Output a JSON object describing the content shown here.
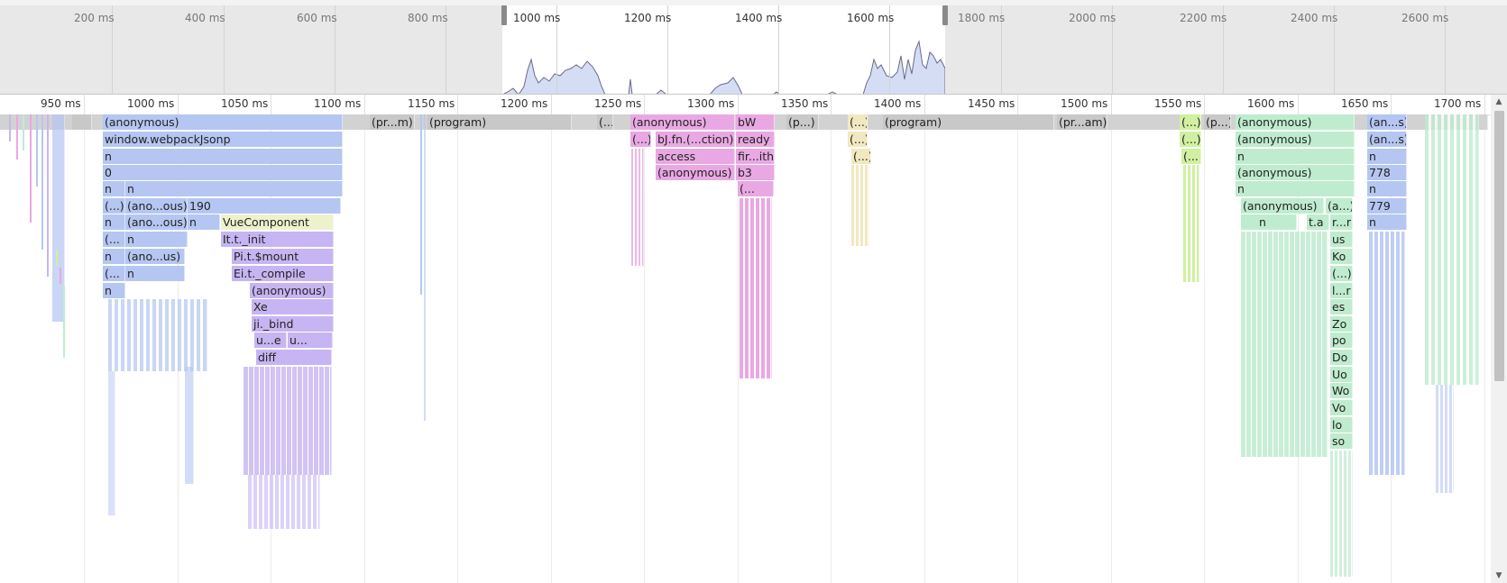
{
  "overview": {
    "ticks": [
      "200 ms",
      "400 ms",
      "600 ms",
      "800 ms",
      "1000 ms",
      "1200 ms",
      "1400 ms",
      "1600 ms",
      "1800 ms",
      "2000 ms",
      "2200 ms",
      "2400 ms",
      "2600 ms"
    ]
  },
  "ruler": {
    "ticks": [
      "950 ms",
      "1000 ms",
      "1050 ms",
      "1100 ms",
      "1150 ms",
      "1200 ms",
      "1250 ms",
      "1300 ms",
      "1350 ms",
      "1400 ms",
      "1450 ms",
      "1500 ms",
      "1550 ms",
      "1600 ms",
      "1650 ms",
      "1700 ms"
    ]
  },
  "colors": {
    "program": "#c8c8c8",
    "blue": "#b5c6f2",
    "purple": "#c6b5f2",
    "pink": "#e9a8e3",
    "green": "#bfeccf",
    "yellow": "#f2e8c0",
    "lime": "#d0f0a0"
  },
  "flame": {
    "labels": {
      "b0": "(anonymous)",
      "b1": "window.webpackJsonp",
      "b2": "n",
      "b3": "0",
      "b4a": "n",
      "b4b": "n",
      "b5a": "(...)",
      "b5b": "(ano...ous)",
      "b5c": "190",
      "b6a": "n",
      "b6b": "(ano...ous)",
      "b6c": "n",
      "b6d": "VueComponent",
      "b7a": "(...",
      "b7b": "n",
      "b7c": "It.t._init",
      "b8a": "n",
      "b8b": "(ano...us)",
      "b8c": "Pi.t.$mount",
      "b9a": "(...",
      "b9b": "n",
      "b9c": "Ei.t._compile",
      "b10a": "n",
      "b10b": "(anonymous)",
      "b11": "Xe",
      "b12": "ji._bind",
      "b13a": "u...e",
      "b13b": "u...",
      "b14": "diff",
      "p1": "(pr...m)",
      "p2": "(program)",
      "p3": "(...",
      "k0": "(anonymous)",
      "k0b": "bW",
      "k1a": "(...)",
      "k1b": "bJ.fn.(...ction)",
      "k1c": "ready",
      "k2a": "access",
      "k2b": "fir...ith",
      "k3a": "(anonymous)",
      "k3b": "b3",
      "k4": "(...",
      "p4": "(p...)",
      "y0": "(...)",
      "y1": "(...)",
      "y2": "(...)",
      "p5": "(program)",
      "p6": "(pr...am)",
      "l0": "(...)",
      "l1": "(...)",
      "l2": "(...",
      "p7": "(p...)",
      "g0": "(anonymous)",
      "g1": "(anonymous)",
      "g2": "n",
      "g3": "(anonymous)",
      "g4": "n",
      "g5a": "(anonymous)",
      "g5b": "(a...)",
      "g6a": "n",
      "g6b": "t.a",
      "g6c": "r...r",
      "g7": "us",
      "g8": "Ko",
      "g9": "(...)",
      "g10": "l...r",
      "g11": "es",
      "g12": "Zo",
      "g13": "po",
      "g14": "Do",
      "g15": "Uo",
      "g16": "Wo",
      "g17": "Vo",
      "g18": "lo",
      "g19": "so",
      "r0": "(an...s)",
      "r1": "(an...s)",
      "r2": "n",
      "r3": "778",
      "r4": "n",
      "r5": "779",
      "r6": "n"
    }
  }
}
